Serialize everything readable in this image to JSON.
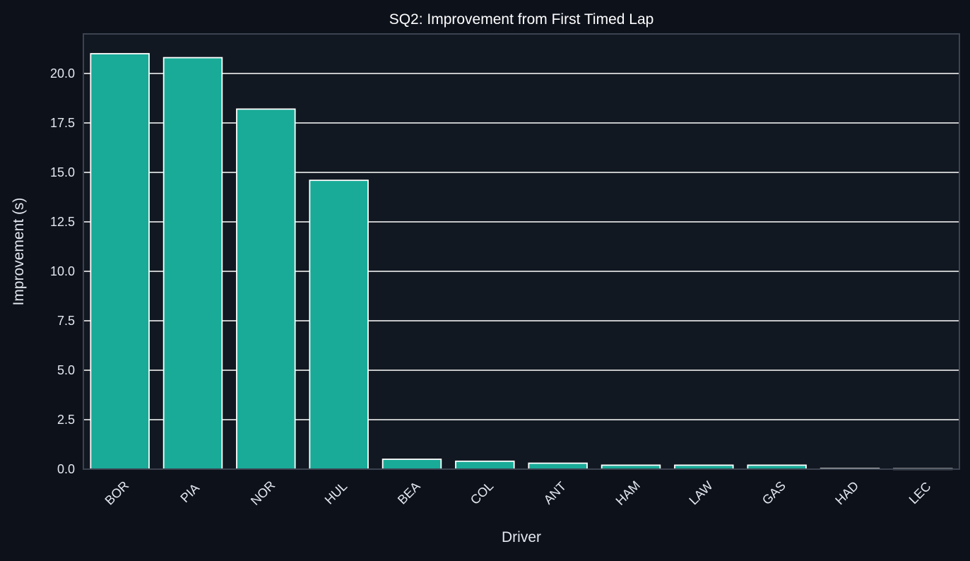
{
  "chart_data": {
    "type": "bar",
    "title": "SQ2: Improvement from First Timed Lap",
    "xlabel": "Driver",
    "ylabel": "Improvement (s)",
    "categories": [
      "BOR",
      "PIA",
      "NOR",
      "HUL",
      "BEA",
      "COL",
      "ANT",
      "HAM",
      "LAW",
      "GAS",
      "HAD",
      "LEC"
    ],
    "values": [
      21.0,
      20.8,
      18.2,
      14.6,
      0.5,
      0.4,
      0.3,
      0.2,
      0.2,
      0.2,
      0.03,
      0.02
    ],
    "ylim": [
      0,
      22
    ],
    "yticks": [
      "0.0",
      "2.5",
      "5.0",
      "7.5",
      "10.0",
      "12.5",
      "15.0",
      "17.5",
      "20.0"
    ],
    "grid": "horizontal",
    "legend": "none"
  },
  "colors": {
    "background": "#0d111a",
    "plot_background": "#121821",
    "bar": "#19ab98",
    "grid": "#ffffff",
    "text": "#e4e8ef"
  }
}
